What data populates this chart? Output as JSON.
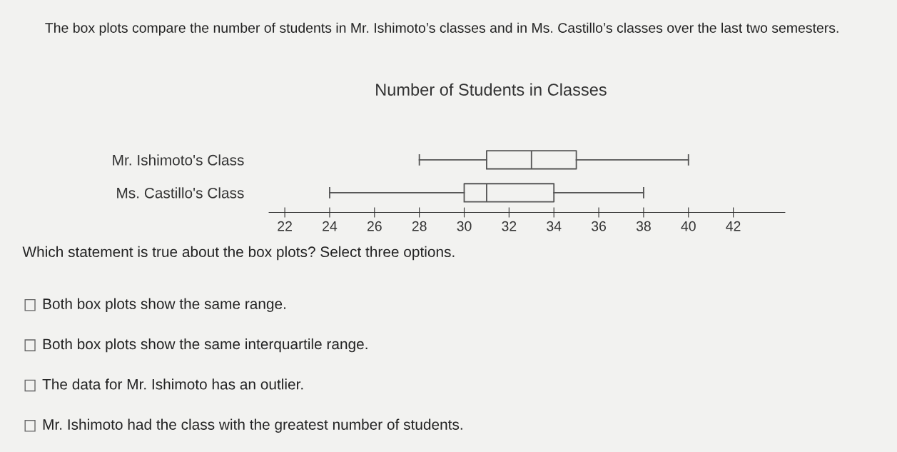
{
  "chart_data": {
    "type": "box",
    "title": "Number of Students in Classes",
    "categories": [
      "Mr. Ishimoto's Class",
      "Ms. Castillo's Class"
    ],
    "boxes": [
      {
        "low": 28,
        "q1": 31,
        "median": 33,
        "q3": 35,
        "high": 40
      },
      {
        "low": 24,
        "q1": 30,
        "median": 31,
        "q3": 34,
        "high": 38
      }
    ],
    "color": "#555555",
    "orientation": "horizontal",
    "xlim": [
      21.3,
      44.3
    ],
    "xticks": [
      22,
      24,
      26,
      28,
      30,
      32,
      34,
      36,
      38,
      40,
      42
    ],
    "grid": false,
    "annotations": [
      "The box plots compare the number of students in Mr. Ishimoto’s classes and in Ms. Castillo’s classes over the last two semesters.",
      "Which statement is true about the box plots? Select three options.",
      "Both box plots show the same range.",
      "Both box plots show the same interquartile range.",
      "The data for Mr. Ishimoto has an outlier.",
      "Mr. Ishimoto had the class with the greatest number of students."
    ]
  }
}
